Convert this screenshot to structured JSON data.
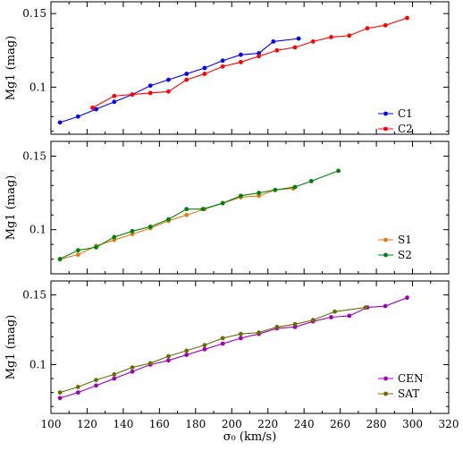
{
  "chart_data": [
    {
      "type": "line",
      "title": "",
      "xlabel": "",
      "ylabel": "Mg1 (mag)",
      "xlim": [
        100,
        320
      ],
      "ylim": [
        0.068,
        0.158
      ],
      "xticks": [
        100,
        120,
        140,
        160,
        180,
        200,
        220,
        240,
        260,
        280,
        300,
        320
      ],
      "yticks": [
        0.1,
        0.15
      ],
      "ytick_labels": [
        "0.1",
        "0.15"
      ],
      "show_xtick_labels": false,
      "legend_position": "right",
      "series": [
        {
          "name": "C1",
          "color": "#0000ff",
          "x": [
            105,
            115,
            125,
            135,
            145,
            155,
            165,
            175,
            185,
            195,
            205,
            215,
            223,
            237
          ],
          "y": [
            0.076,
            0.08,
            0.085,
            0.09,
            0.095,
            0.101,
            0.105,
            0.109,
            0.113,
            0.118,
            0.122,
            0.123,
            0.131,
            0.133
          ]
        },
        {
          "name": "C2",
          "color": "#ff0000",
          "x": [
            123,
            135,
            145,
            155,
            165,
            175,
            185,
            195,
            205,
            215,
            225,
            235,
            245,
            255,
            265,
            275,
            285,
            297
          ],
          "y": [
            0.086,
            0.094,
            0.095,
            0.096,
            0.097,
            0.105,
            0.109,
            0.114,
            0.117,
            0.121,
            0.125,
            0.127,
            0.131,
            0.134,
            0.135,
            0.14,
            0.142,
            0.147
          ]
        }
      ]
    },
    {
      "type": "line",
      "title": "",
      "xlabel": "",
      "ylabel": "Mg1 (mag)",
      "xlim": [
        100,
        320
      ],
      "ylim": [
        0.07,
        0.16
      ],
      "xticks": [
        100,
        120,
        140,
        160,
        180,
        200,
        220,
        240,
        260,
        280,
        300,
        320
      ],
      "yticks": [
        0.1,
        0.15
      ],
      "ytick_labels": [
        "0.1",
        "0.15"
      ],
      "show_xtick_labels": false,
      "legend_position": "right",
      "series": [
        {
          "name": "S1",
          "color": "#e07b10",
          "x": [
            105,
            115,
            125,
            135,
            145,
            155,
            165,
            175,
            185,
            195,
            205,
            215,
            224,
            234
          ],
          "y": [
            0.08,
            0.083,
            0.089,
            0.093,
            0.097,
            0.101,
            0.106,
            0.11,
            0.114,
            0.118,
            0.122,
            0.123,
            0.127,
            0.128
          ]
        },
        {
          "name": "S2",
          "color": "#00800a",
          "x": [
            105,
            115,
            125,
            135,
            145,
            155,
            165,
            175,
            184,
            195,
            205,
            215,
            224,
            235,
            244,
            259
          ],
          "y": [
            0.08,
            0.086,
            0.088,
            0.095,
            0.099,
            0.102,
            0.107,
            0.114,
            0.114,
            0.118,
            0.123,
            0.125,
            0.127,
            0.129,
            0.133,
            0.14
          ]
        }
      ]
    },
    {
      "type": "line",
      "title": "",
      "xlabel": "σ₀ (km/s)",
      "ylabel": "Mg1 (mag)",
      "xlim": [
        100,
        320
      ],
      "ylim": [
        0.065,
        0.16
      ],
      "xticks": [
        100,
        120,
        140,
        160,
        180,
        200,
        220,
        240,
        260,
        280,
        300,
        320
      ],
      "xtick_labels": [
        "100",
        "120",
        "140",
        "160",
        "180",
        "200",
        "220",
        "240",
        "260",
        "280",
        "300",
        "320"
      ],
      "yticks": [
        0.1,
        0.15
      ],
      "ytick_labels": [
        "0.1",
        "0.15"
      ],
      "show_xtick_labels": true,
      "legend_position": "right",
      "series": [
        {
          "name": "CEN",
          "color": "#a000b4",
          "x": [
            105,
            115,
            125,
            135,
            145,
            155,
            165,
            175,
            185,
            195,
            205,
            215,
            225,
            235,
            245,
            255,
            265,
            275,
            285,
            297
          ],
          "y": [
            0.076,
            0.08,
            0.085,
            0.09,
            0.095,
            0.1,
            0.103,
            0.107,
            0.111,
            0.115,
            0.119,
            0.122,
            0.126,
            0.127,
            0.131,
            0.134,
            0.135,
            0.141,
            0.142,
            0.148
          ]
        },
        {
          "name": "SAT",
          "color": "#6b6b00",
          "x": [
            105,
            115,
            125,
            135,
            145,
            155,
            165,
            175,
            185,
            195,
            205,
            215,
            225,
            235,
            245,
            257,
            274
          ],
          "y": [
            0.08,
            0.084,
            0.089,
            0.093,
            0.098,
            0.101,
            0.106,
            0.11,
            0.114,
            0.119,
            0.122,
            0.123,
            0.127,
            0.129,
            0.132,
            0.138,
            0.141
          ]
        }
      ]
    }
  ]
}
